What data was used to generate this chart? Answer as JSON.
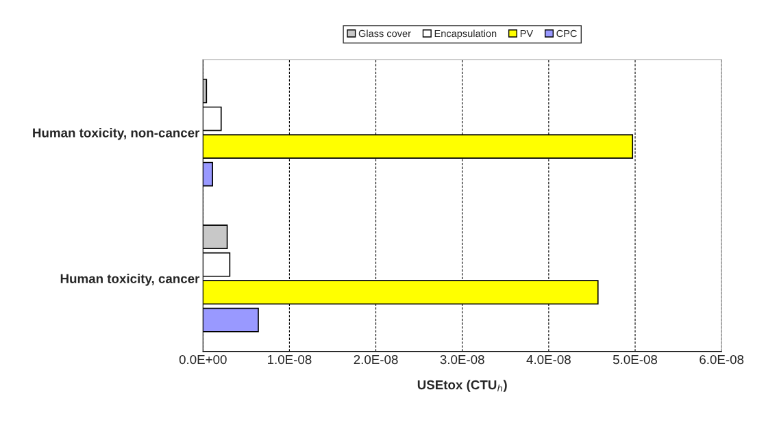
{
  "chart_data": {
    "type": "bar",
    "orientation": "horizontal",
    "categories": [
      "Human toxicity, non-cancer",
      "Human toxicity, cancer"
    ],
    "series": [
      {
        "name": "Glass cover",
        "color": "#c8c8c8",
        "values": [
          4e-10,
          2.8e-09
        ]
      },
      {
        "name": "Encapsulation",
        "color": "#ffffff",
        "values": [
          2.1e-09,
          3.1e-09
        ]
      },
      {
        "name": "PV",
        "color": "#ffff00",
        "values": [
          4.97e-08,
          4.57e-08
        ]
      },
      {
        "name": "CPC",
        "color": "#9999ff",
        "values": [
          1.1e-09,
          6.4e-09
        ]
      }
    ],
    "xlabel": "USEtox (CTU$_{h}$)",
    "xlim": [
      0,
      6e-08
    ],
    "xticks": [
      {
        "value": 0,
        "label": "0.0E+00"
      },
      {
        "value": 1e-08,
        "label": "1.0E-08"
      },
      {
        "value": 2e-08,
        "label": "2.0E-08"
      },
      {
        "value": 3e-08,
        "label": "3.0E-08"
      },
      {
        "value": 4e-08,
        "label": "4.0E-08"
      },
      {
        "value": 5e-08,
        "label": "5.0E-08"
      },
      {
        "value": 6e-08,
        "label": "6.0E-08"
      }
    ],
    "grid": "x",
    "legend": "top"
  }
}
